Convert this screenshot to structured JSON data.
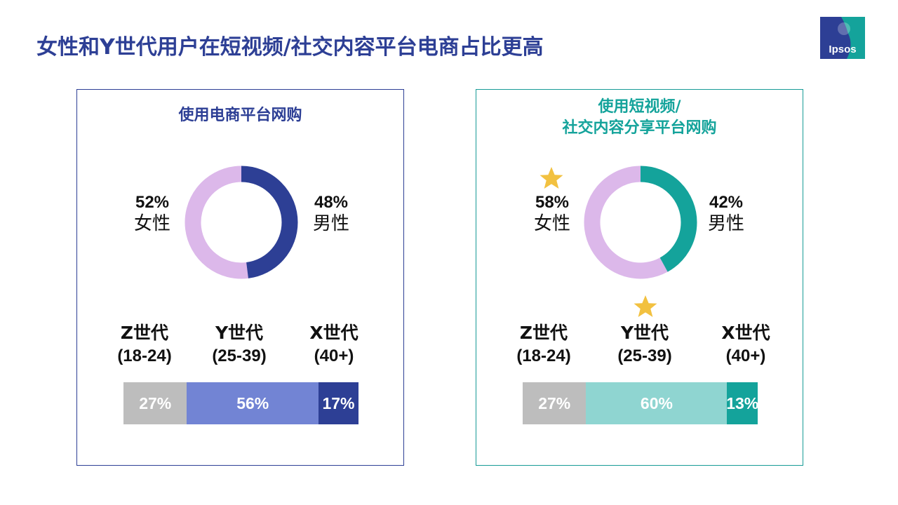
{
  "page": {
    "title": "女性和Y世代用户在短视频/社交内容平台电商占比更高"
  },
  "logo": {
    "text": "Ipsos"
  },
  "colors": {
    "navy": "#2d3f95",
    "teal": "#14a39b",
    "lavender": "#dcb8ea",
    "gray": "#bdbdbd",
    "mid_blue": "#7284d4",
    "light_teal": "#8fd5d1",
    "star": "#f2c140"
  },
  "panels": [
    {
      "title_lines": [
        "使用电商平台网购"
      ],
      "gender": {
        "female_pct": "52%",
        "female_label": "女性",
        "male_pct": "48%",
        "male_label": "男性"
      },
      "generations": [
        {
          "name": "Z世代",
          "range": "(18-24)",
          "pct_label": "27%"
        },
        {
          "name": "Y世代",
          "range": "(25-39)",
          "pct_label": "56%"
        },
        {
          "name": "X世代",
          "range": "(40+)",
          "pct_label": "17%"
        }
      ]
    },
    {
      "title_lines": [
        "使用短视频/",
        "社交内容分享平台网购"
      ],
      "gender": {
        "female_pct": "58%",
        "female_label": "女性",
        "male_pct": "42%",
        "male_label": "男性"
      },
      "generations": [
        {
          "name": "Z世代",
          "range": "(18-24)",
          "pct_label": "27%"
        },
        {
          "name": "Y世代",
          "range": "(25-39)",
          "pct_label": "60%"
        },
        {
          "name": "X世代",
          "range": "(40+)",
          "pct_label": "13%"
        }
      ]
    }
  ],
  "chart_data": [
    {
      "type": "pie",
      "donut": true,
      "categories": [
        "女性",
        "男性"
      ],
      "values": [
        52,
        48
      ],
      "colors": [
        "#dcb8ea",
        "#2d3f95"
      ]
    },
    {
      "type": "bar",
      "stacked": true,
      "orientation": "horizontal",
      "categories": [
        "Z世代 (18-24)",
        "Y世代 (25-39)",
        "X世代 (40+)"
      ],
      "values": [
        27,
        56,
        17
      ],
      "colors": [
        "#bdbdbd",
        "#7284d4",
        "#2d3f95"
      ]
    },
    {
      "type": "pie",
      "donut": true,
      "categories": [
        "女性",
        "男性"
      ],
      "values": [
        58,
        42
      ],
      "colors": [
        "#dcb8ea",
        "#14a39b"
      ],
      "highlight": "女性"
    },
    {
      "type": "bar",
      "stacked": true,
      "orientation": "horizontal",
      "categories": [
        "Z世代 (18-24)",
        "Y世代 (25-39)",
        "X世代 (40+)"
      ],
      "values": [
        27,
        60,
        13
      ],
      "colors": [
        "#bdbdbd",
        "#8fd5d1",
        "#14a39b"
      ],
      "highlight": "Y世代 (25-39)"
    }
  ]
}
